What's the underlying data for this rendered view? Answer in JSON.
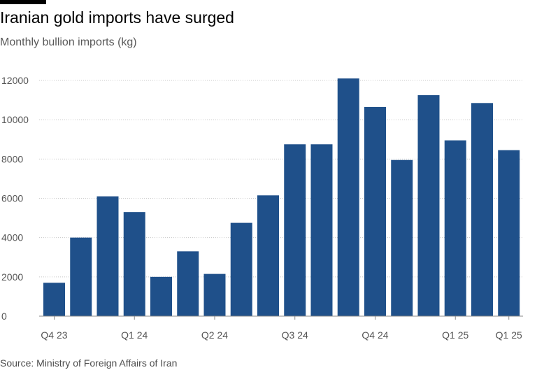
{
  "header": {
    "title": "Iranian gold imports have surged",
    "subtitle": "Monthly bullion imports (kg)"
  },
  "footer": {
    "source": "Source: Ministry of Foreign Affairs of Iran"
  },
  "colors": {
    "bar": "#1f508a",
    "grid": "#c8c8c8",
    "axis_text": "#555555"
  },
  "chart_data": {
    "type": "bar",
    "title": "Iranian gold imports have surged",
    "subtitle": "Monthly bullion imports (kg)",
    "ylim": [
      0,
      12000
    ],
    "yticks": [
      0,
      2000,
      4000,
      6000,
      8000,
      10000,
      12000
    ],
    "grid": true,
    "legend": "none",
    "xtick_labels": [
      {
        "label": "Q4 23",
        "at_index": 0
      },
      {
        "label": "Q1 24",
        "at_index": 3
      },
      {
        "label": "Q2 24",
        "at_index": 6
      },
      {
        "label": "Q3 24",
        "at_index": 9
      },
      {
        "label": "Q4 24",
        "at_index": 12
      },
      {
        "label": "Q1 25",
        "at_index": 15
      },
      {
        "label": "Q1 25",
        "at_index": 17
      }
    ],
    "values": [
      1700,
      4000,
      6100,
      5300,
      2000,
      3300,
      2150,
      4750,
      6150,
      8750,
      8750,
      12100,
      10650,
      7950,
      11250,
      8950,
      10850,
      8450
    ]
  }
}
